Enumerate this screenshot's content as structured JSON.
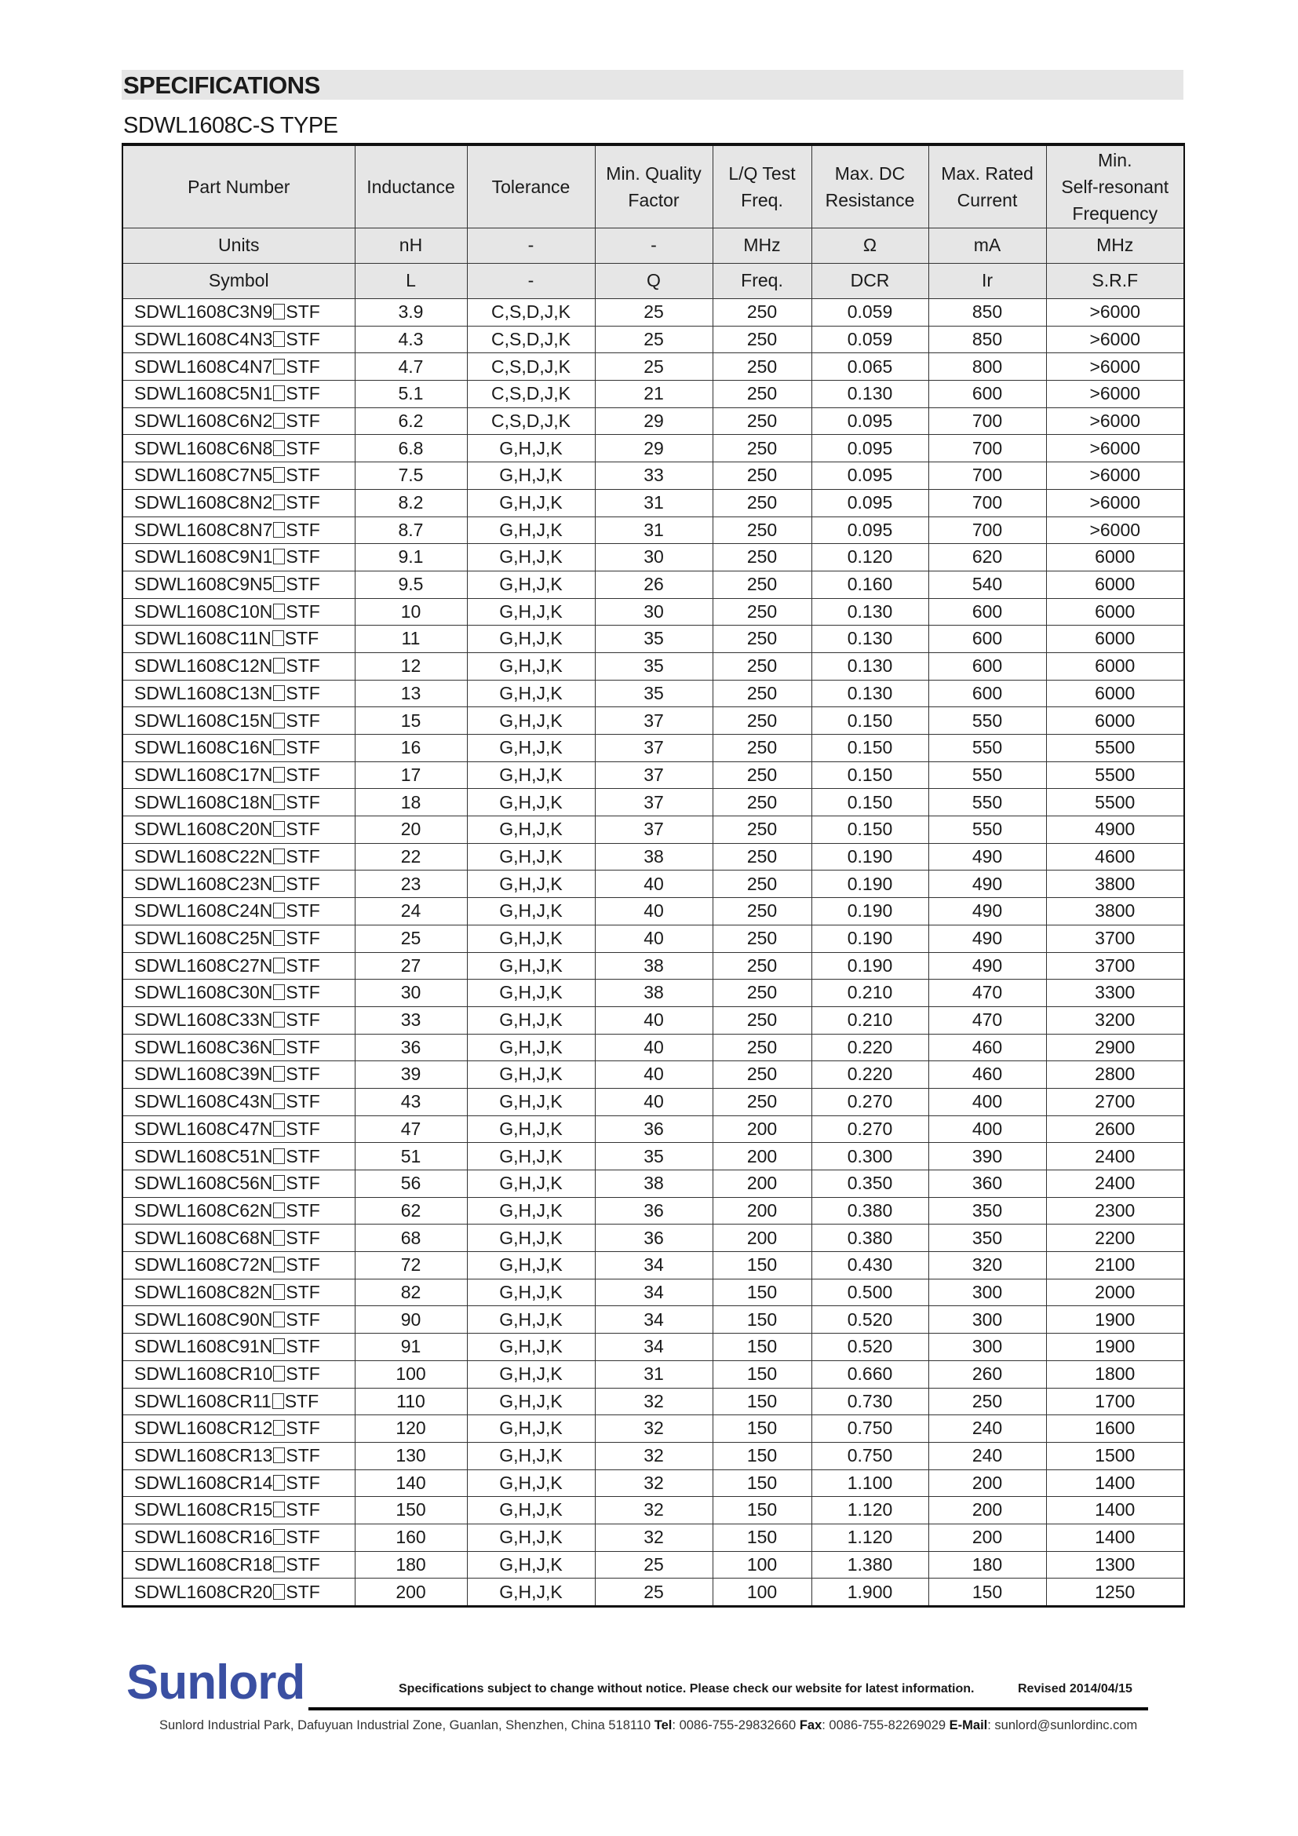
{
  "header": {
    "title": "SPECIFICATIONS",
    "subtitle": "SDWL1608C-S TYPE"
  },
  "table": {
    "headers": [
      [
        "Part Number"
      ],
      [
        "Inductance"
      ],
      [
        "Tolerance"
      ],
      [
        "Min. Quality",
        "Factor"
      ],
      [
        "L/Q Test",
        "Freq."
      ],
      [
        "Max. DC",
        "Resistance"
      ],
      [
        "Max. Rated",
        "Current"
      ],
      [
        "Min.",
        "Self-resonant",
        "Frequency"
      ]
    ],
    "units": [
      "Units",
      "nH",
      "-",
      "-",
      "MHz",
      "Ω",
      "mA",
      "MHz"
    ],
    "symbols": [
      "Symbol",
      "L",
      "-",
      "Q",
      "Freq.",
      "DCR",
      "Ir",
      "S.R.F"
    ],
    "part_placeholder_symbol": "□",
    "rows": [
      [
        "SDWL1608C3N9□STF",
        "3.9",
        "C,S,D,J,K",
        "25",
        "250",
        "0.059",
        "850",
        ">6000"
      ],
      [
        "SDWL1608C4N3□STF",
        "4.3",
        "C,S,D,J,K",
        "25",
        "250",
        "0.059",
        "850",
        ">6000"
      ],
      [
        "SDWL1608C4N7□STF",
        "4.7",
        "C,S,D,J,K",
        "25",
        "250",
        "0.065",
        "800",
        ">6000"
      ],
      [
        "SDWL1608C5N1□STF",
        "5.1",
        "C,S,D,J,K",
        "21",
        "250",
        "0.130",
        "600",
        ">6000"
      ],
      [
        "SDWL1608C6N2□STF",
        "6.2",
        "C,S,D,J,K",
        "29",
        "250",
        "0.095",
        "700",
        ">6000"
      ],
      [
        "SDWL1608C6N8□STF",
        "6.8",
        "G,H,J,K",
        "29",
        "250",
        "0.095",
        "700",
        ">6000"
      ],
      [
        "SDWL1608C7N5□STF",
        "7.5",
        "G,H,J,K",
        "33",
        "250",
        "0.095",
        "700",
        ">6000"
      ],
      [
        "SDWL1608C8N2□STF",
        "8.2",
        "G,H,J,K",
        "31",
        "250",
        "0.095",
        "700",
        ">6000"
      ],
      [
        "SDWL1608C8N7□STF",
        "8.7",
        "G,H,J,K",
        "31",
        "250",
        "0.095",
        "700",
        ">6000"
      ],
      [
        "SDWL1608C9N1□STF",
        "9.1",
        "G,H,J,K",
        "30",
        "250",
        "0.120",
        "620",
        "6000"
      ],
      [
        "SDWL1608C9N5□STF",
        "9.5",
        "G,H,J,K",
        "26",
        "250",
        "0.160",
        "540",
        "6000"
      ],
      [
        "SDWL1608C10N□STF",
        "10",
        "G,H,J,K",
        "30",
        "250",
        "0.130",
        "600",
        "6000"
      ],
      [
        "SDWL1608C11N□STF",
        "11",
        "G,H,J,K",
        "35",
        "250",
        "0.130",
        "600",
        "6000"
      ],
      [
        "SDWL1608C12N□STF",
        "12",
        "G,H,J,K",
        "35",
        "250",
        "0.130",
        "600",
        "6000"
      ],
      [
        "SDWL1608C13N□STF",
        "13",
        "G,H,J,K",
        "35",
        "250",
        "0.130",
        "600",
        "6000"
      ],
      [
        "SDWL1608C15N□STF",
        "15",
        "G,H,J,K",
        "37",
        "250",
        "0.150",
        "550",
        "6000"
      ],
      [
        "SDWL1608C16N□STF",
        "16",
        "G,H,J,K",
        "37",
        "250",
        "0.150",
        "550",
        "5500"
      ],
      [
        "SDWL1608C17N□STF",
        "17",
        "G,H,J,K",
        "37",
        "250",
        "0.150",
        "550",
        "5500"
      ],
      [
        "SDWL1608C18N□STF",
        "18",
        "G,H,J,K",
        "37",
        "250",
        "0.150",
        "550",
        "5500"
      ],
      [
        "SDWL1608C20N□STF",
        "20",
        "G,H,J,K",
        "37",
        "250",
        "0.150",
        "550",
        "4900"
      ],
      [
        "SDWL1608C22N□STF",
        "22",
        "G,H,J,K",
        "38",
        "250",
        "0.190",
        "490",
        "4600"
      ],
      [
        "SDWL1608C23N□STF",
        "23",
        "G,H,J,K",
        "40",
        "250",
        "0.190",
        "490",
        "3800"
      ],
      [
        "SDWL1608C24N□STF",
        "24",
        "G,H,J,K",
        "40",
        "250",
        "0.190",
        "490",
        "3800"
      ],
      [
        "SDWL1608C25N□STF",
        "25",
        "G,H,J,K",
        "40",
        "250",
        "0.190",
        "490",
        "3700"
      ],
      [
        "SDWL1608C27N□STF",
        "27",
        "G,H,J,K",
        "38",
        "250",
        "0.190",
        "490",
        "3700"
      ],
      [
        "SDWL1608C30N□STF",
        "30",
        "G,H,J,K",
        "38",
        "250",
        "0.210",
        "470",
        "3300"
      ],
      [
        "SDWL1608C33N□STF",
        "33",
        "G,H,J,K",
        "40",
        "250",
        "0.210",
        "470",
        "3200"
      ],
      [
        "SDWL1608C36N□STF",
        "36",
        "G,H,J,K",
        "40",
        "250",
        "0.220",
        "460",
        "2900"
      ],
      [
        "SDWL1608C39N□STF",
        "39",
        "G,H,J,K",
        "40",
        "250",
        "0.220",
        "460",
        "2800"
      ],
      [
        "SDWL1608C43N□STF",
        "43",
        "G,H,J,K",
        "40",
        "250",
        "0.270",
        "400",
        "2700"
      ],
      [
        "SDWL1608C47N□STF",
        "47",
        "G,H,J,K",
        "36",
        "200",
        "0.270",
        "400",
        "2600"
      ],
      [
        "SDWL1608C51N□STF",
        "51",
        "G,H,J,K",
        "35",
        "200",
        "0.300",
        "390",
        "2400"
      ],
      [
        "SDWL1608C56N□STF",
        "56",
        "G,H,J,K",
        "38",
        "200",
        "0.350",
        "360",
        "2400"
      ],
      [
        "SDWL1608C62N□STF",
        "62",
        "G,H,J,K",
        "36",
        "200",
        "0.380",
        "350",
        "2300"
      ],
      [
        "SDWL1608C68N□STF",
        "68",
        "G,H,J,K",
        "36",
        "200",
        "0.380",
        "350",
        "2200"
      ],
      [
        "SDWL1608C72N□STF",
        "72",
        "G,H,J,K",
        "34",
        "150",
        "0.430",
        "320",
        "2100"
      ],
      [
        "SDWL1608C82N□STF",
        "82",
        "G,H,J,K",
        "34",
        "150",
        "0.500",
        "300",
        "2000"
      ],
      [
        "SDWL1608C90N□STF",
        "90",
        "G,H,J,K",
        "34",
        "150",
        "0.520",
        "300",
        "1900"
      ],
      [
        "SDWL1608C91N□STF",
        "91",
        "G,H,J,K",
        "34",
        "150",
        "0.520",
        "300",
        "1900"
      ],
      [
        "SDWL1608CR10□STF",
        "100",
        "G,H,J,K",
        "31",
        "150",
        "0.660",
        "260",
        "1800"
      ],
      [
        "SDWL1608CR11□STF",
        "110",
        "G,H,J,K",
        "32",
        "150",
        "0.730",
        "250",
        "1700"
      ],
      [
        "SDWL1608CR12□STF",
        "120",
        "G,H,J,K",
        "32",
        "150",
        "0.750",
        "240",
        "1600"
      ],
      [
        "SDWL1608CR13□STF",
        "130",
        "G,H,J,K",
        "32",
        "150",
        "0.750",
        "240",
        "1500"
      ],
      [
        "SDWL1608CR14□STF",
        "140",
        "G,H,J,K",
        "32",
        "150",
        "1.100",
        "200",
        "1400"
      ],
      [
        "SDWL1608CR15□STF",
        "150",
        "G,H,J,K",
        "32",
        "150",
        "1.120",
        "200",
        "1400"
      ],
      [
        "SDWL1608CR16□STF",
        "160",
        "G,H,J,K",
        "32",
        "150",
        "1.120",
        "200",
        "1400"
      ],
      [
        "SDWL1608CR18□STF",
        "180",
        "G,H,J,K",
        "25",
        "100",
        "1.380",
        "180",
        "1300"
      ],
      [
        "SDWL1608CR20□STF",
        "200",
        "G,H,J,K",
        "25",
        "100",
        "1.900",
        "150",
        "1250"
      ]
    ]
  },
  "footer": {
    "logo": "Sunlord",
    "brand_color": "#3a4fa2",
    "notice": "Specifications subject to change without notice. Please check our website for latest information.",
    "revised": "Revised 2014/04/15",
    "address": "Sunlord Industrial Park, Dafuyuan Industrial Zone, Guanlan, Shenzhen, China 518110",
    "tel_label": "Tel",
    "tel": ": 0086-755-29832660",
    "fax_label": "Fax",
    "fax": ": 0086-755-82269029",
    "email_label": "E-Mail",
    "email": ": sunlord@sunlordinc.com"
  }
}
